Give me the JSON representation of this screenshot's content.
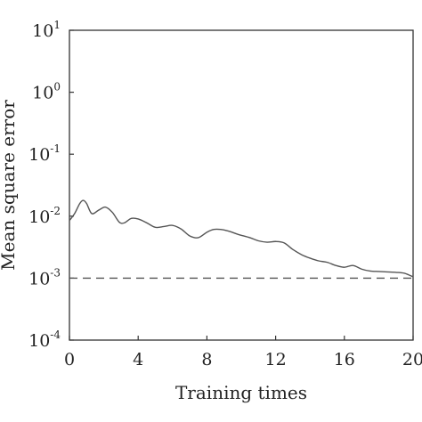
{
  "chart_data": {
    "type": "line",
    "xlabel": "Training times",
    "ylabel": "Mean square error",
    "xlim": [
      0,
      20
    ],
    "ylim": [
      0.0001,
      10
    ],
    "yscale": "log",
    "grid": false,
    "x_ticks": [
      {
        "value": 0,
        "label": "0"
      },
      {
        "value": 4,
        "label": "4"
      },
      {
        "value": 8,
        "label": "8"
      },
      {
        "value": 12,
        "label": "12"
      },
      {
        "value": 16,
        "label": "16"
      },
      {
        "value": 20,
        "label": "20"
      }
    ],
    "y_ticks": [
      {
        "value": 10,
        "base": "10",
        "exp": "1"
      },
      {
        "value": 1,
        "base": "10",
        "exp": "0"
      },
      {
        "value": 0.1,
        "base": "10",
        "exp": "-1"
      },
      {
        "value": 0.01,
        "base": "10",
        "exp": "-2"
      },
      {
        "value": 0.001,
        "base": "10",
        "exp": "-3"
      },
      {
        "value": 0.0001,
        "base": "10",
        "exp": "-4"
      }
    ],
    "series": [
      {
        "style": "solid",
        "color": "#555555",
        "x": [
          0,
          0.3,
          0.6,
          0.8,
          1.0,
          1.3,
          1.7,
          2.1,
          2.5,
          2.9,
          3.2,
          3.6,
          4.0,
          4.5,
          5.0,
          5.5,
          6.0,
          6.5,
          7.0,
          7.5,
          8.0,
          8.4,
          8.8,
          9.3,
          9.8,
          10.5,
          11.0,
          11.5,
          12.0,
          12.5,
          13.0,
          13.5,
          14.0,
          14.5,
          15.0,
          15.5,
          16.0,
          16.5,
          17.0,
          17.5,
          18.0,
          18.5,
          19.0,
          19.5,
          20.0
        ],
        "y": [
          0.0085,
          0.011,
          0.016,
          0.018,
          0.016,
          0.011,
          0.0125,
          0.014,
          0.0115,
          0.008,
          0.0078,
          0.0092,
          0.009,
          0.0078,
          0.0066,
          0.0068,
          0.0071,
          0.0062,
          0.0048,
          0.0045,
          0.0055,
          0.0061,
          0.0061,
          0.0057,
          0.0051,
          0.0045,
          0.004,
          0.0038,
          0.0039,
          0.0037,
          0.0029,
          0.0024,
          0.0021,
          0.0019,
          0.0018,
          0.0016,
          0.0015,
          0.0016,
          0.0014,
          0.0013,
          0.00128,
          0.00126,
          0.00124,
          0.0012,
          0.00105
        ]
      },
      {
        "style": "dashed",
        "color": "#555555",
        "x": [
          0,
          20
        ],
        "y": [
          0.001,
          0.001
        ]
      }
    ]
  }
}
